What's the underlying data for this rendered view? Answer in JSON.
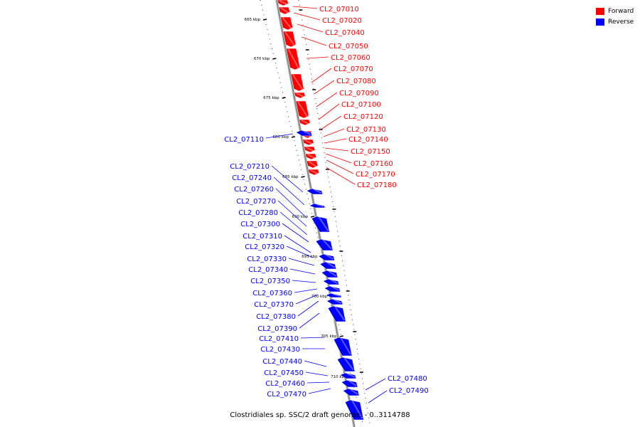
{
  "legend": {
    "forward": {
      "label": "Forward",
      "color": "#ff0000"
    },
    "reverse": {
      "label": "Reverse",
      "color": "#0000ff"
    }
  },
  "caption": "Clostridiales sp. SSC/2 draft genome. - 0..3114788",
  "colors": {
    "forward": "#ff0000",
    "reverse": "#0000ff",
    "backbone": "#888888",
    "ticks": "#000000"
  },
  "tick_labels": [
    "665 kbp",
    "670 kbp",
    "675 kbp",
    "680 kbp",
    "685 kbp",
    "690 kbp",
    "695 kbp",
    "700 kbp",
    "705 kbp",
    "710 kbp"
  ],
  "genes": [
    {
      "id": "CL2_07010",
      "strand": "forward"
    },
    {
      "id": "CL2_07020",
      "strand": "forward"
    },
    {
      "id": "CL2_07040",
      "strand": "forward"
    },
    {
      "id": "CL2_07050",
      "strand": "forward"
    },
    {
      "id": "CL2_07060",
      "strand": "forward"
    },
    {
      "id": "CL2_07070",
      "strand": "forward"
    },
    {
      "id": "CL2_07080",
      "strand": "forward"
    },
    {
      "id": "CL2_07090",
      "strand": "forward"
    },
    {
      "id": "CL2_07100",
      "strand": "forward"
    },
    {
      "id": "CL2_07120",
      "strand": "forward"
    },
    {
      "id": "CL2_07130",
      "strand": "forward"
    },
    {
      "id": "CL2_07140",
      "strand": "forward"
    },
    {
      "id": "CL2_07150",
      "strand": "forward"
    },
    {
      "id": "CL2_07160",
      "strand": "forward"
    },
    {
      "id": "CL2_07170",
      "strand": "forward"
    },
    {
      "id": "CL2_07180",
      "strand": "forward"
    },
    {
      "id": "CL2_07110",
      "strand": "reverse"
    },
    {
      "id": "CL2_07210",
      "strand": "reverse"
    },
    {
      "id": "CL2_07240",
      "strand": "reverse"
    },
    {
      "id": "CL2_07260",
      "strand": "reverse"
    },
    {
      "id": "CL2_07270",
      "strand": "reverse"
    },
    {
      "id": "CL2_07280",
      "strand": "reverse"
    },
    {
      "id": "CL2_07300",
      "strand": "reverse"
    },
    {
      "id": "CL2_07310",
      "strand": "reverse"
    },
    {
      "id": "CL2_07320",
      "strand": "reverse"
    },
    {
      "id": "CL2_07330",
      "strand": "reverse"
    },
    {
      "id": "CL2_07340",
      "strand": "reverse"
    },
    {
      "id": "CL2_07350",
      "strand": "reverse"
    },
    {
      "id": "CL2_07360",
      "strand": "reverse"
    },
    {
      "id": "CL2_07370",
      "strand": "reverse"
    },
    {
      "id": "CL2_07380",
      "strand": "reverse"
    },
    {
      "id": "CL2_07390",
      "strand": "reverse"
    },
    {
      "id": "CL2_07410",
      "strand": "reverse"
    },
    {
      "id": "CL2_07430",
      "strand": "reverse"
    },
    {
      "id": "CL2_07440",
      "strand": "reverse"
    },
    {
      "id": "CL2_07450",
      "strand": "reverse"
    },
    {
      "id": "CL2_07460",
      "strand": "reverse"
    },
    {
      "id": "CL2_07470",
      "strand": "reverse"
    },
    {
      "id": "CL2_07480",
      "strand": "reverse"
    },
    {
      "id": "CL2_07490",
      "strand": "reverse"
    }
  ]
}
